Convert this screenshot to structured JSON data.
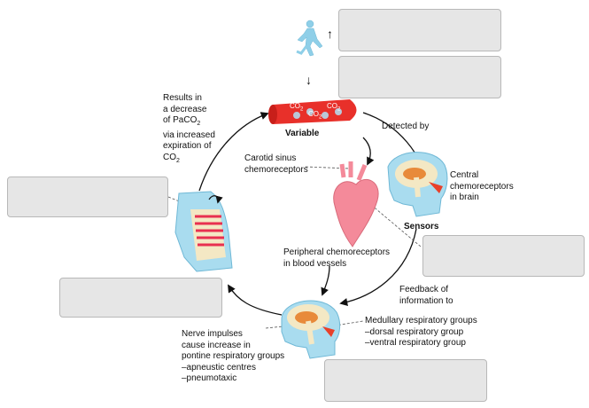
{
  "labels": {
    "variable": "Variable",
    "detected_by": "Detected by",
    "central_chemoreceptors": "Central\nchemoreceptors\nin brain",
    "sensors": "Sensors",
    "carotid_sinus": "Carotid sinus\nchemoreceptors",
    "peripheral": "Peripheral chemoreceptors\nin blood vessels",
    "feedback": "Feedback of\ninformation to",
    "medullary": "Medullary respiratory groups\n–dorsal respiratory group\n–ventral respiratory group",
    "nerve_impulses": "Nerve impulses\ncause increase in\npontine respiratory groups\n–apneustic centres\n–pneumotaxic",
    "results_lines": "Results in\na decrease\nof PaCO",
    "results_sub1": "2",
    "results_lines2": "via increased\nexpiration of\nCO",
    "results_sub2": "2",
    "co2_label": "CO",
    "co2_sub": "2",
    "up_arrow": "↑",
    "down_arrow": "↓"
  },
  "answer_boxes": [
    {
      "id": "box-top-1"
    },
    {
      "id": "box-top-2"
    },
    {
      "id": "box-left-mid"
    },
    {
      "id": "box-right-mid"
    },
    {
      "id": "box-left-low"
    },
    {
      "id": "box-bottom"
    }
  ],
  "colors": {
    "blood_vessel": "#e8302a",
    "heart": "#f48a9a",
    "head": "#a9dcef",
    "brain": "#f4e8c4",
    "brain_red": "#e8402a",
    "lungs": "#e83050",
    "runner": "#8fcfe8"
  }
}
